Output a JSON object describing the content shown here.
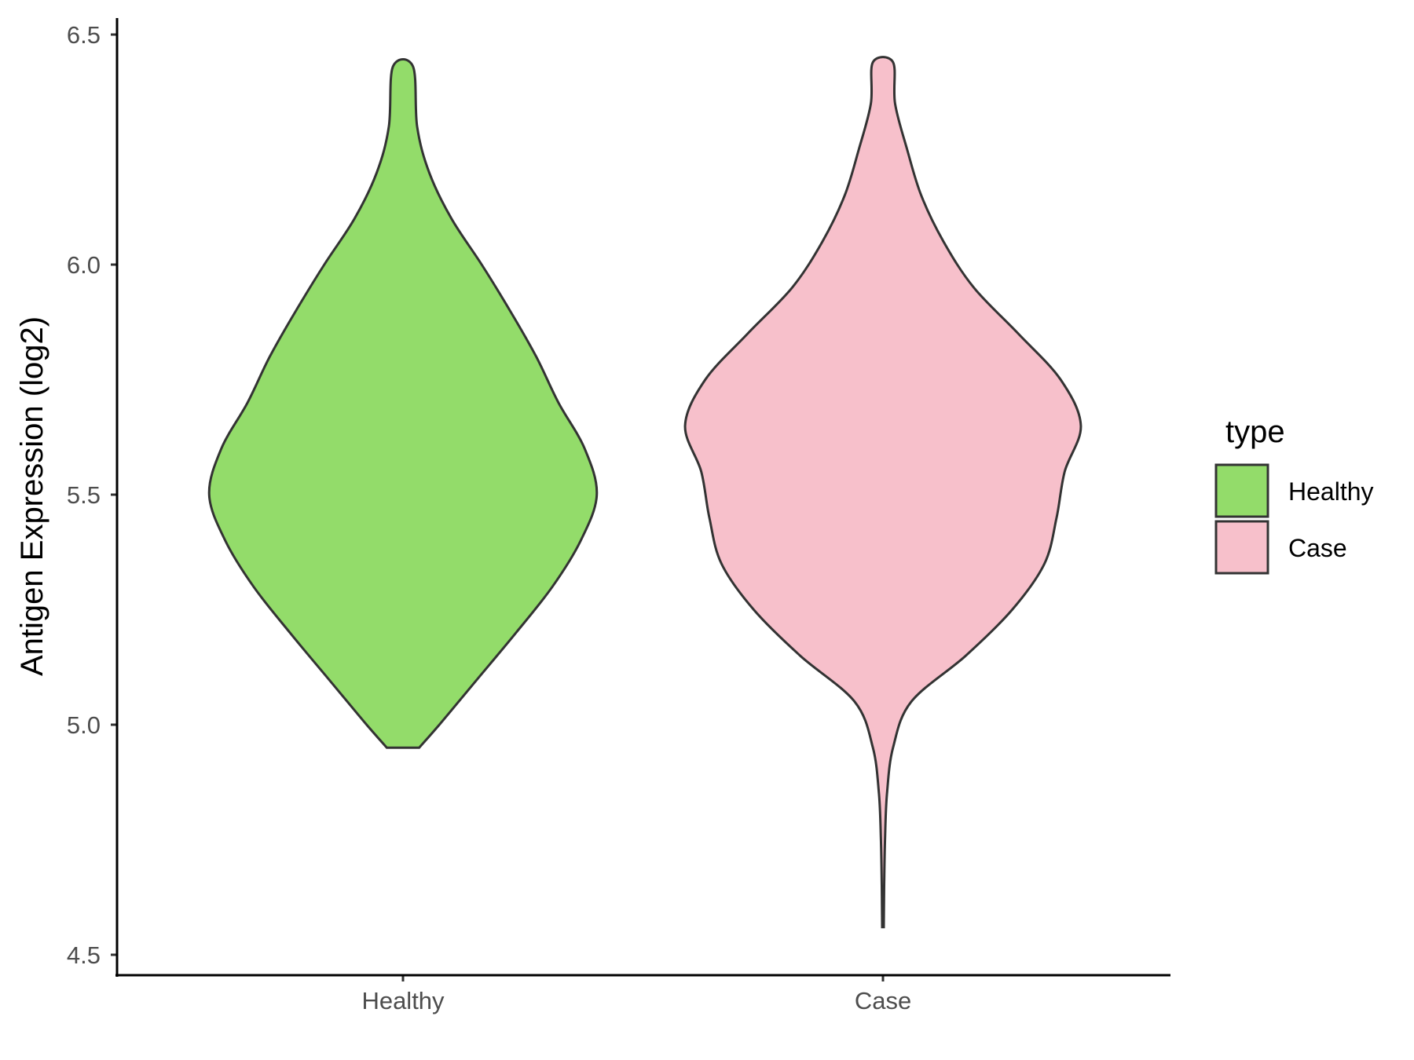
{
  "chart_data": {
    "type": "violin",
    "ylabel": "Antigen Expression (log2)",
    "xlabel": "",
    "categories": [
      "Healthy",
      "Case"
    ],
    "ylim": [
      4.48,
      6.54
    ],
    "yticks": [
      "4.5",
      "5.0",
      "5.5",
      "6.0",
      "6.5"
    ],
    "ytick_values": [
      4.5,
      5.0,
      5.5,
      6.0,
      6.5
    ],
    "grid": false,
    "legend": {
      "title": "type",
      "position": "right",
      "entries": [
        {
          "label": "Healthy",
          "color": "#93dc6a"
        },
        {
          "label": "Case",
          "color": "#f7c0cb"
        }
      ]
    },
    "series": [
      {
        "name": "Healthy",
        "color": "#93dc6a",
        "min": 4.95,
        "max": 6.43,
        "density_profile": [
          [
            4.95,
            0.08
          ],
          [
            5.0,
            0.18
          ],
          [
            5.1,
            0.37
          ],
          [
            5.2,
            0.56
          ],
          [
            5.3,
            0.74
          ],
          [
            5.4,
            0.88
          ],
          [
            5.5,
            0.96
          ],
          [
            5.6,
            0.9
          ],
          [
            5.7,
            0.77
          ],
          [
            5.8,
            0.66
          ],
          [
            5.9,
            0.53
          ],
          [
            6.0,
            0.39
          ],
          [
            6.1,
            0.24
          ],
          [
            6.2,
            0.13
          ],
          [
            6.3,
            0.07
          ],
          [
            6.43,
            0.05
          ]
        ]
      },
      {
        "name": "Case",
        "color": "#f7c0cb",
        "min": 4.56,
        "max": 6.44,
        "density_profile": [
          [
            4.56,
            0.004
          ],
          [
            4.65,
            0.006
          ],
          [
            4.75,
            0.01
          ],
          [
            4.85,
            0.02
          ],
          [
            4.95,
            0.05
          ],
          [
            5.05,
            0.14
          ],
          [
            5.15,
            0.41
          ],
          [
            5.25,
            0.64
          ],
          [
            5.35,
            0.8
          ],
          [
            5.45,
            0.86
          ],
          [
            5.55,
            0.9
          ],
          [
            5.65,
            0.98
          ],
          [
            5.75,
            0.88
          ],
          [
            5.85,
            0.67
          ],
          [
            5.95,
            0.45
          ],
          [
            6.05,
            0.3
          ],
          [
            6.15,
            0.19
          ],
          [
            6.25,
            0.12
          ],
          [
            6.35,
            0.06
          ],
          [
            6.44,
            0.05
          ]
        ]
      }
    ]
  }
}
